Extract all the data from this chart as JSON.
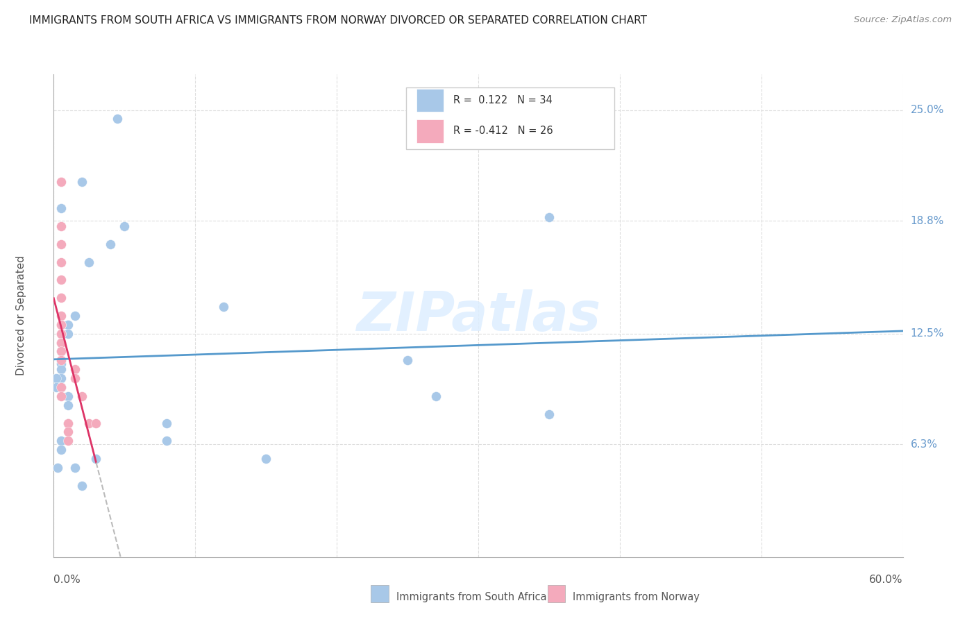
{
  "title": "IMMIGRANTS FROM SOUTH AFRICA VS IMMIGRANTS FROM NORWAY DIVORCED OR SEPARATED CORRELATION CHART",
  "source": "Source: ZipAtlas.com",
  "ylabel": "Divorced or Separated",
  "ytick_vals": [
    0.063,
    0.125,
    0.188,
    0.25
  ],
  "ytick_labels": [
    "6.3%",
    "12.5%",
    "18.8%",
    "25.0%"
  ],
  "xlim": [
    0.0,
    0.6
  ],
  "ylim": [
    0.0,
    0.27
  ],
  "watermark": "ZIPatlas",
  "blue_scatter": "#a8c8e8",
  "pink_scatter": "#f4aabc",
  "line_blue": "#5599cc",
  "line_pink": "#dd3366",
  "line_dashed_color": "#bbbbbb",
  "grid_color": "#dddddd",
  "right_label_color": "#6699cc",
  "sa_x": [
    0.005,
    0.005,
    0.005,
    0.005,
    0.005,
    0.005,
    0.005,
    0.005,
    0.005,
    0.01,
    0.01,
    0.01,
    0.01,
    0.015,
    0.015,
    0.02,
    0.02,
    0.025,
    0.03,
    0.04,
    0.045,
    0.05,
    0.08,
    0.08,
    0.12,
    0.15,
    0.25,
    0.27,
    0.35,
    0.35,
    0.003,
    0.002,
    0.002,
    0.005
  ],
  "sa_y": [
    0.12,
    0.115,
    0.11,
    0.108,
    0.105,
    0.1,
    0.095,
    0.065,
    0.06,
    0.09,
    0.085,
    0.13,
    0.125,
    0.135,
    0.05,
    0.21,
    0.04,
    0.165,
    0.055,
    0.175,
    0.245,
    0.185,
    0.075,
    0.065,
    0.14,
    0.055,
    0.11,
    0.09,
    0.08,
    0.19,
    0.05,
    0.1,
    0.095,
    0.195
  ],
  "no_x": [
    0.005,
    0.005,
    0.005,
    0.005,
    0.005,
    0.005,
    0.005,
    0.005,
    0.005,
    0.005,
    0.005,
    0.005,
    0.005,
    0.005,
    0.005,
    0.005,
    0.005,
    0.01,
    0.01,
    0.01,
    0.01,
    0.015,
    0.015,
    0.02,
    0.025,
    0.03
  ],
  "no_y": [
    0.21,
    0.185,
    0.175,
    0.165,
    0.155,
    0.145,
    0.135,
    0.13,
    0.13,
    0.125,
    0.125,
    0.12,
    0.12,
    0.115,
    0.11,
    0.095,
    0.09,
    0.075,
    0.075,
    0.07,
    0.065,
    0.105,
    0.1,
    0.09,
    0.075,
    0.075
  ]
}
